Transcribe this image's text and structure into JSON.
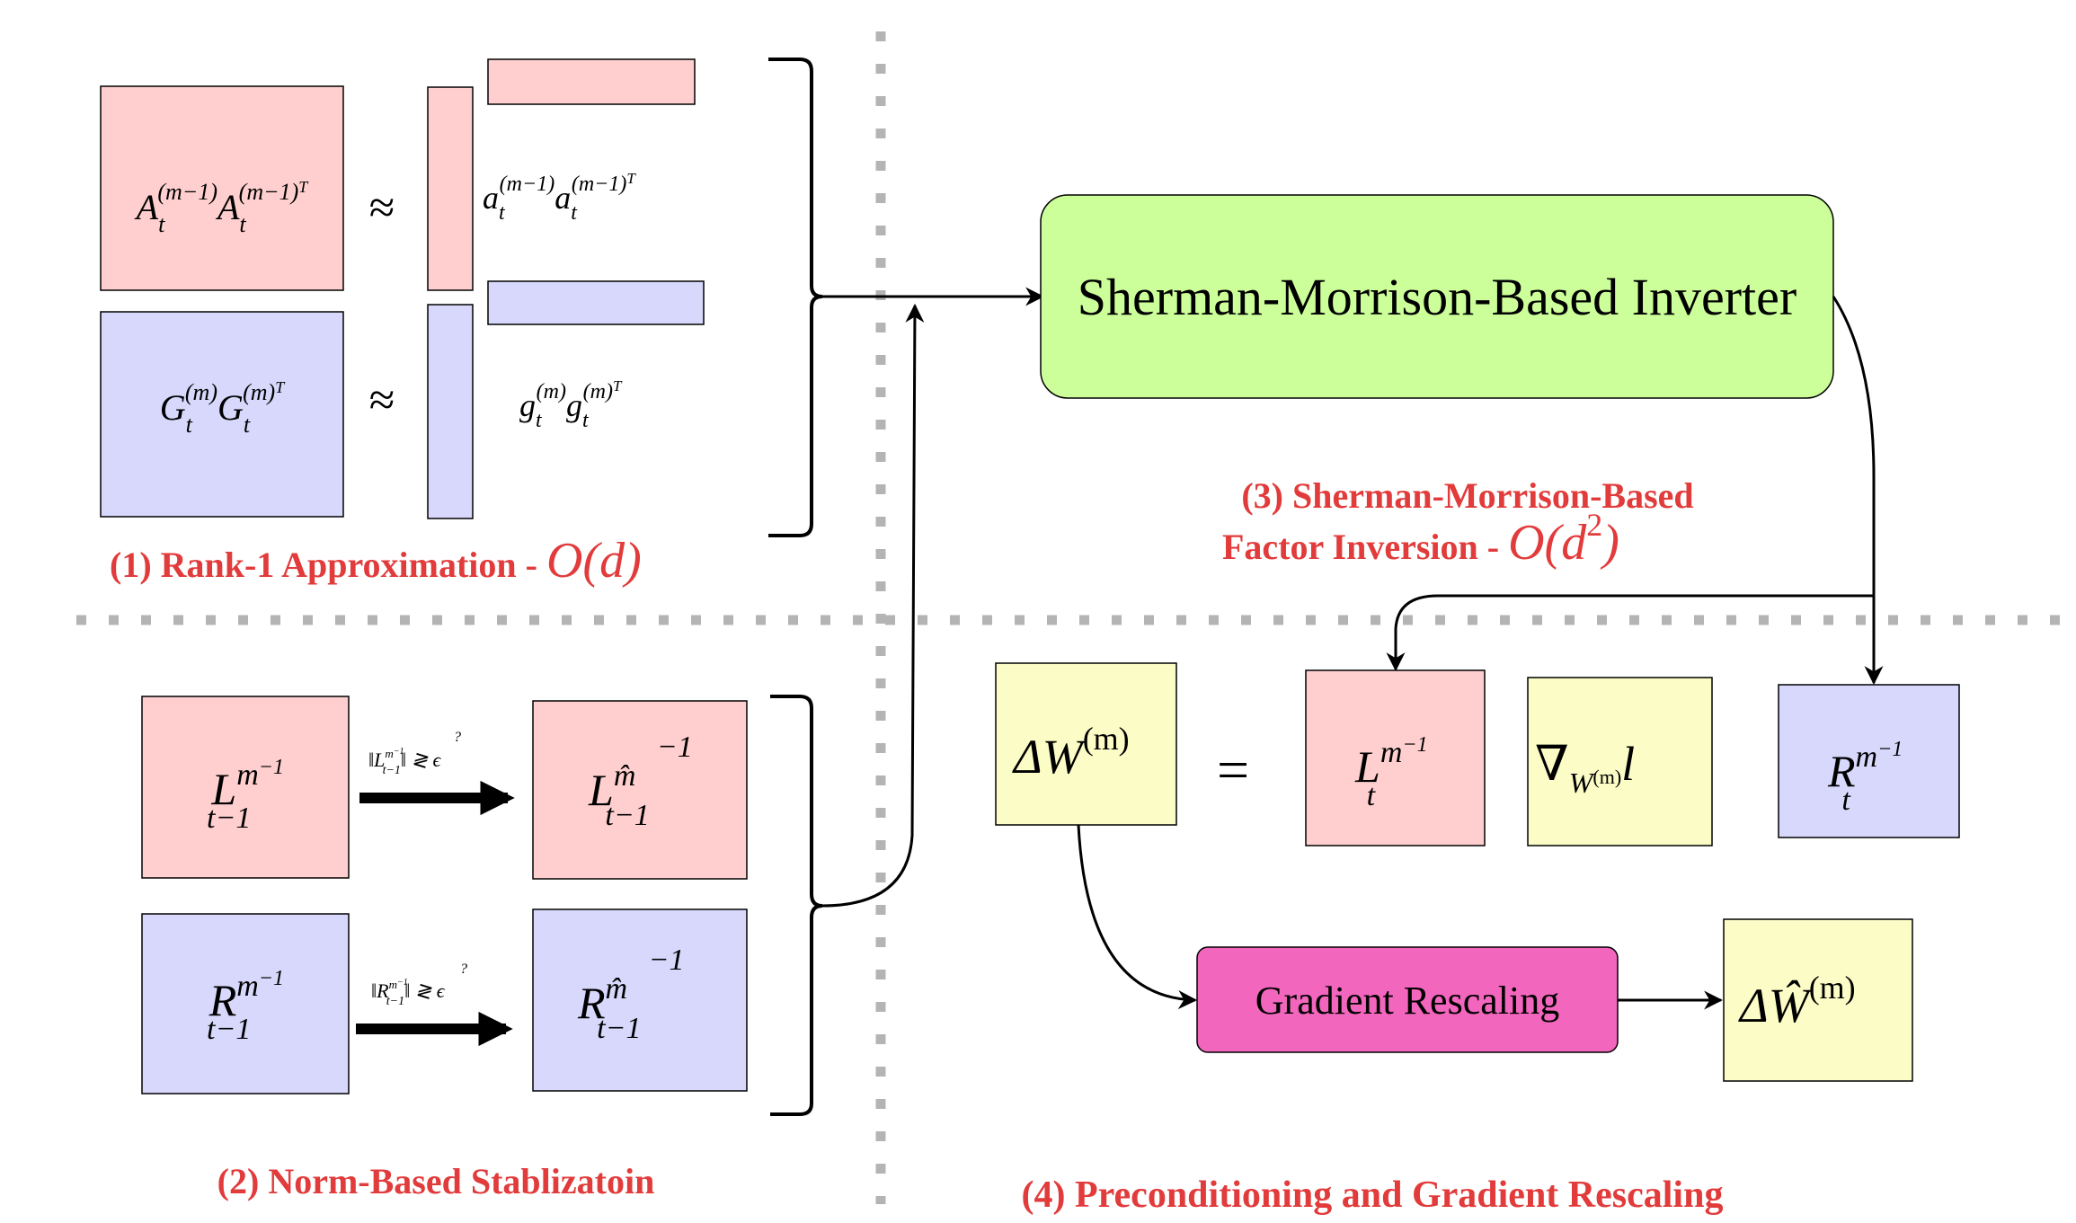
{
  "colors": {
    "pink": "#ffcfcf",
    "lavender": "#d7d8fb",
    "light_yellow": "#fcfcc7",
    "light_green": "#ccff99",
    "magenta": "#f266bd",
    "title_red": "#e23b3b",
    "divider_gray": "#b4b4b4",
    "stroke": "#000000"
  },
  "section1": {
    "title": "(1) Rank-1 Approximation - ",
    "complexity": "O(d)",
    "a_matrix": {
      "base": "A",
      "sub": "t",
      "sup": "(m−1)",
      "sup_T": "(m−1)",
      "T": "T"
    },
    "g_matrix": {
      "base": "G",
      "sub": "t",
      "sup": "(m)",
      "sup_T": "(m)",
      "T": "T"
    },
    "approx_symbol": "≈",
    "a_vector": {
      "base": "a",
      "sub": "t",
      "sup": "(m−1)",
      "sup_T": "(m−1)",
      "T": "T"
    },
    "g_vector": {
      "base": "g",
      "sub": "t",
      "sup": "(m)",
      "sup_T": "(m)",
      "T": "T"
    }
  },
  "section2": {
    "title": "(2) Norm-Based Stablizatoin",
    "l_input": {
      "base": "L",
      "sup": "m",
      "sup2": "−1",
      "sub": "t−1"
    },
    "r_input": {
      "base": "R",
      "sup": "m",
      "sup2": "−1",
      "sub": "t−1"
    },
    "l_condition": "‖L",
    "l_condition_sup": "m",
    "l_condition_sup2": "−1",
    "l_condition_sub": "t−1",
    "l_condition_rest": "‖ ≷ ϵ",
    "r_condition": "‖R",
    "r_condition_sup": "m",
    "r_condition_sup2": "−1",
    "r_condition_sub": "t−1",
    "r_condition_rest": "‖ ≷ ϵ",
    "question": "?",
    "l_output": {
      "base": "L",
      "sup": "m̂",
      "sub": "t−1",
      "power": "−1"
    },
    "r_output": {
      "base": "R",
      "sup": "m̂",
      "sub": "t−1",
      "power": "−1"
    }
  },
  "section3": {
    "inverter_label": "Sherman-Morrison-Based Inverter",
    "title_line1": "(3) Sherman-Morrison-Based",
    "title_line2": "Factor Inversion - ",
    "complexity": "O(d",
    "complexity_sup": "2",
    "complexity_end": ")"
  },
  "section4": {
    "title": "(4) Preconditioning and Gradient Rescaling",
    "delta_w": {
      "base": "ΔW",
      "sup": "(m)"
    },
    "equals": "=",
    "l_factor": {
      "base": "L",
      "sup": "m",
      "sup2": "−1",
      "sub": "t"
    },
    "gradient": {
      "nabla": "∇",
      "sub": "W",
      "sub_sup": "(m)",
      "tail": "l"
    },
    "r_factor": {
      "base": "R",
      "sup": "m",
      "sup2": "−1",
      "sub": "t"
    },
    "rescale_label": "Gradient Rescaling",
    "delta_w_hat": {
      "base": "ΔŴ",
      "sup": "(m)"
    }
  }
}
